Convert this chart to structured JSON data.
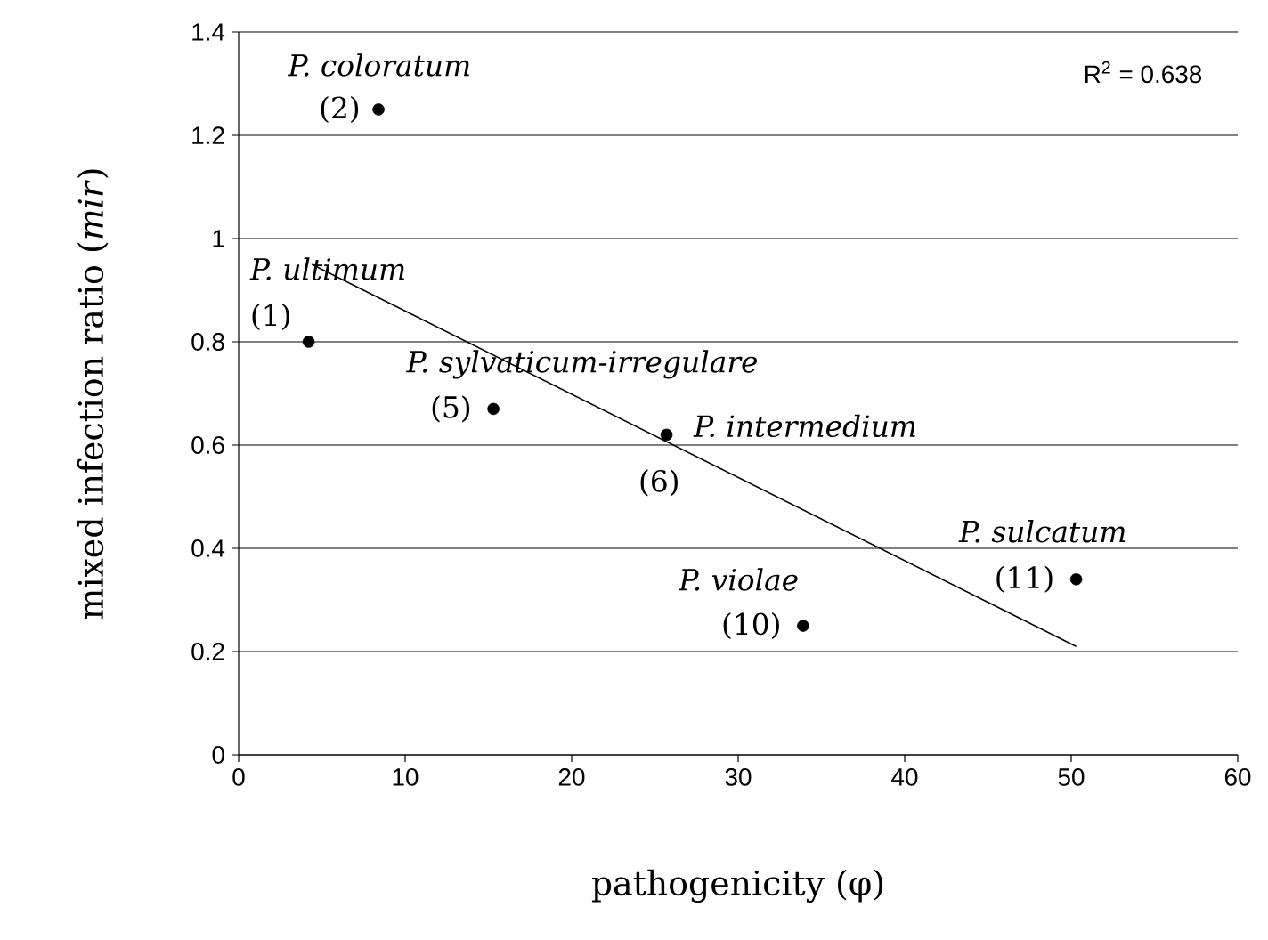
{
  "chart_data": {
    "type": "scatter",
    "xlabel": "pathogenicity (φ)",
    "ylabel": "mixed infection ratio (*mir*)",
    "x": [
      4.2,
      8.4,
      15.3,
      25.7,
      33.9,
      50.3
    ],
    "series": [
      {
        "color": "#000000",
        "marker": "circle",
        "values": [
          0.8,
          1.25,
          0.67,
          0.62,
          0.25,
          0.34
        ]
      },
      {
        "type": "line",
        "color": "#000000",
        "marker": "none",
        "x": [
          4.4,
          50.3
        ],
        "values": [
          0.95,
          0.21
        ]
      }
    ],
    "xlim": [
      0,
      60
    ],
    "xticks": [
      0,
      10,
      20,
      30,
      40,
      50,
      60
    ],
    "ylim": [
      0,
      1.4
    ],
    "yticks": [
      0,
      0.2,
      0.4,
      0.6,
      0.8,
      1,
      1.2,
      1.4
    ],
    "grid": "y",
    "annotations": [
      {
        "text": "*P. ultimum*",
        "x": 4.2,
        "y": 0.8
      },
      {
        "text": "(1)",
        "x": 4.2,
        "y": 0.8
      },
      {
        "text": "*P. coloratum*",
        "x": 8.4,
        "y": 1.25
      },
      {
        "text": "(2)",
        "x": 8.4,
        "y": 1.25
      },
      {
        "text": "*P. sylvaticum-irregulare*",
        "x": 15.3,
        "y": 0.67
      },
      {
        "text": "(5)",
        "x": 15.3,
        "y": 0.67
      },
      {
        "text": "*P. intermedium*",
        "x": 25.7,
        "y": 0.62
      },
      {
        "text": "(6)",
        "x": 25.7,
        "y": 0.62
      },
      {
        "text": "*P. violae*",
        "x": 33.9,
        "y": 0.25
      },
      {
        "text": "(10)",
        "x": 33.9,
        "y": 0.25
      },
      {
        "text": "*P. sulcatum*",
        "x": 50.3,
        "y": 0.34
      },
      {
        "text": "(11)",
        "x": 50.3,
        "y": 0.34
      },
      "R$^{2}$ = 0.638"
    ]
  }
}
